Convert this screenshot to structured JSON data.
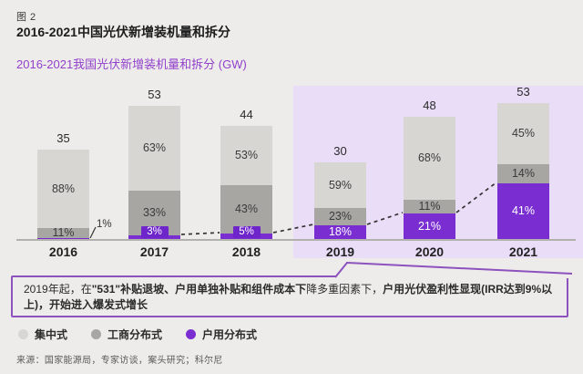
{
  "header": {
    "fig_label": "图 2",
    "title": "2016-2021中国光伏新增装机量和拆分",
    "subtitle": "2016-2021我国光伏新增装机量和拆分 (GW)"
  },
  "chart_data": {
    "type": "bar",
    "variant": "stacked-100pct-with-totals",
    "title": "2016-2021我国光伏新增装机量和拆分 (GW)",
    "unit": "GW",
    "categories": [
      "2016",
      "2017",
      "2018",
      "2019",
      "2020",
      "2021"
    ],
    "totals": [
      35,
      53,
      44,
      30,
      48,
      53
    ],
    "series": [
      {
        "name": "集中式",
        "color": "#d8d6d3",
        "pct": [
          88,
          63,
          53,
          59,
          68,
          45
        ]
      },
      {
        "name": "工商分布式",
        "color": "#a8a6a3",
        "pct": [
          11,
          33,
          43,
          23,
          11,
          14
        ]
      },
      {
        "name": "户用分布式",
        "color": "#7a2ed2",
        "pct": [
          1,
          3,
          5,
          18,
          21,
          41
        ]
      }
    ],
    "highlight_years": [
      "2019",
      "2020",
      "2021"
    ],
    "highlight_color": "#e9ddf7",
    "trend_line": "户用分布式段顶部虚线连线",
    "legend_position": "bottom",
    "value_axis": "hidden"
  },
  "callout": {
    "parts": [
      {
        "text": "2019年起，在",
        "bold": false
      },
      {
        "text": "\"531\"补贴退坡、户用单独补贴和组件成本下",
        "bold": true
      },
      {
        "text": "降多重因素下，",
        "bold": false
      },
      {
        "text": "户用光伏盈利性显现(IRR达到9%以上)，",
        "bold": true
      },
      {
        "text": "开始进入爆发式增长",
        "bold": true
      }
    ]
  },
  "legend": {
    "items": [
      {
        "label": "集中式",
        "color": "#d8d6d3"
      },
      {
        "label": "工商分布式",
        "color": "#a8a6a3"
      },
      {
        "label": "户用分布式",
        "color": "#7a2ed2"
      }
    ]
  },
  "source": {
    "text": "来源：国家能源局，专家访谈，案头研究；科尔尼"
  },
  "colors": {
    "accent_purple": "#9240cc",
    "bar_purple": "#7a2ed2",
    "badge_purple": "#6e25c9",
    "callout_border": "#8d52bd",
    "highlight_bg": "#e9ddf7",
    "background": "#edecea"
  }
}
